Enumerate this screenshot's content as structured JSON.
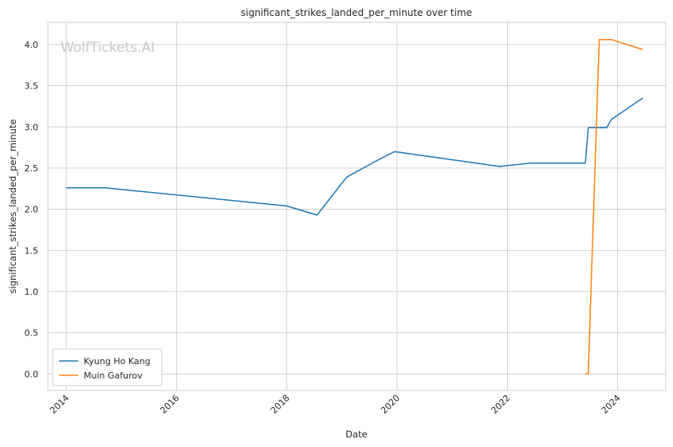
{
  "chart_data": {
    "type": "line",
    "title": "significant_strikes_landed_per_minute over time",
    "xlabel": "Date",
    "ylabel": "significant_strikes_landed_per_minute",
    "watermark": "WolfTickets.AI",
    "xlim": [
      "2013-09-01",
      "2024-11-15"
    ],
    "ylim": [
      -0.2,
      4.27
    ],
    "x_ticks": [
      "2014",
      "2016",
      "2018",
      "2020",
      "2022",
      "2024"
    ],
    "y_ticks": [
      "0.0",
      "0.5",
      "1.0",
      "1.5",
      "2.0",
      "2.5",
      "3.0",
      "3.5",
      "4.0"
    ],
    "grid": true,
    "legend_position": "lower-left",
    "series": [
      {
        "name": "Kyung Ho Kang",
        "color": "#1f77b4",
        "points": [
          [
            "2014-01-01",
            2.26
          ],
          [
            "2014-09-15",
            2.26
          ],
          [
            "2018-01-01",
            2.04
          ],
          [
            "2018-07-20",
            1.93
          ],
          [
            "2019-02-01",
            2.39
          ],
          [
            "2019-08-20",
            2.59
          ],
          [
            "2019-12-15",
            2.7
          ],
          [
            "2021-11-10",
            2.52
          ],
          [
            "2022-06-01",
            2.56
          ],
          [
            "2023-06-01",
            2.56
          ],
          [
            "2023-06-20",
            2.99
          ],
          [
            "2023-10-20",
            2.99
          ],
          [
            "2023-11-20",
            3.09
          ],
          [
            "2024-06-15",
            3.35
          ]
        ]
      },
      {
        "name": "Muin Gafurov",
        "color": "#ff7f0e",
        "points": [
          [
            "2023-06-01",
            0.0
          ],
          [
            "2023-06-20",
            0.0
          ],
          [
            "2023-09-01",
            4.06
          ],
          [
            "2023-11-20",
            4.06
          ],
          [
            "2024-06-15",
            3.94
          ]
        ]
      }
    ]
  }
}
